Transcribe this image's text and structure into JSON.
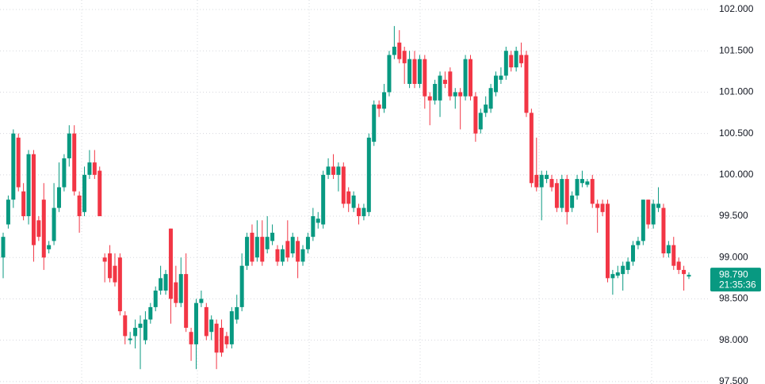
{
  "chart_data": {
    "type": "candlestick",
    "up_color": "#089981",
    "down_color": "#f23645",
    "grid": true,
    "ylim": [
      97.47,
      102.115
    ],
    "yticks": [
      {
        "value": 97.5,
        "label": "97.500"
      },
      {
        "value": 98,
        "label": "98.000"
      },
      {
        "value": 98.5,
        "label": "98.500"
      },
      {
        "value": 99,
        "label": "99.000"
      },
      {
        "value": 99.5,
        "label": "99.500"
      },
      {
        "value": 100,
        "label": "100.000"
      },
      {
        "value": 100.5,
        "label": "100.500"
      },
      {
        "value": 101,
        "label": "101.000"
      },
      {
        "value": 101.5,
        "label": "101.500"
      },
      {
        "value": 102,
        "label": "102.000"
      }
    ],
    "last_price": {
      "value": 98.79,
      "label": "98.790"
    },
    "countdown": "21:35:36",
    "open": [
      99.0,
      99.4,
      99.7,
      100.45,
      99.8,
      99.5,
      100.25,
      99.45,
      99.7,
      99.1,
      99.2,
      99.6,
      99.85,
      100.2,
      100.5,
      99.75,
      99.55,
      100.0,
      100.15,
      100.05,
      99.0,
      99.05,
      98.9,
      99.0,
      98.3,
      98.0,
      98.05,
      98.15,
      98.0,
      98.25,
      98.4,
      98.6,
      98.6,
      99.35,
      98.7,
      98.45,
      98.8,
      98.1,
      97.95,
      98.45,
      98.4,
      98.1,
      98.2,
      98.15,
      98.05,
      97.95,
      98.25,
      98.4,
      98.9,
      99.3,
      99.0,
      99.25,
      99.1,
      99.2,
      99.1,
      98.95,
      99.2,
      99.05,
      99.2,
      98.95,
      99.1,
      99.25,
      99.42,
      99.4,
      100.0,
      100.1,
      100.0,
      100.1,
      99.8,
      99.6,
      99.6,
      99.5,
      99.55,
      100.4,
      100.85,
      100.8,
      101.0,
      101.45,
      101.6,
      101.5,
      101.1,
      101.4,
      101.1,
      101.4,
      100.95,
      100.9,
      100.9,
      101.15,
      101.25,
      100.95,
      101.0,
      100.95,
      101.4,
      100.95,
      100.55,
      100.75,
      100.8,
      101.0,
      101.15,
      101.2,
      101.45,
      101.3,
      101.45,
      101.45,
      100.75,
      100.0,
      99.85,
      99.95,
      99.95,
      99.9,
      99.6,
      99.95,
      99.6,
      99.75,
      99.9,
      99.88,
      99.95,
      99.65,
      99.65,
      99.65,
      98.75,
      98.78,
      98.8,
      98.85,
      98.95,
      99.15,
      99.2,
      99.7,
      99.4,
      99.6,
      99.6,
      99.05,
      99.15,
      98.95,
      98.85,
      98.77
    ],
    "high": [
      99.3,
      99.75,
      100.55,
      100.5,
      99.9,
      100.3,
      100.3,
      99.5,
      99.9,
      99.2,
      99.9,
      100.15,
      100.25,
      100.6,
      100.6,
      99.8,
      100.1,
      100.3,
      100.3,
      100.1,
      99.05,
      99.15,
      99.05,
      99.05,
      98.35,
      98.1,
      98.25,
      98.3,
      98.35,
      98.45,
      98.65,
      98.9,
      98.85,
      99.35,
      98.9,
      99.0,
      99.05,
      98.15,
      98.5,
      98.6,
      98.45,
      98.3,
      98.25,
      98.25,
      98.1,
      98.4,
      98.55,
      99.05,
      99.3,
      99.4,
      99.45,
      99.45,
      99.5,
      99.4,
      99.15,
      99.15,
      99.45,
      99.3,
      99.25,
      99.15,
      99.3,
      99.6,
      99.55,
      100.05,
      100.2,
      100.25,
      100.15,
      100.15,
      99.85,
      99.8,
      99.65,
      99.65,
      100.5,
      100.9,
      100.9,
      101.1,
      101.5,
      101.8,
      101.75,
      101.55,
      101.5,
      101.5,
      101.45,
      101.45,
      101.0,
      101.15,
      101.25,
      101.25,
      101.3,
      101.05,
      101.05,
      101.45,
      101.45,
      101.0,
      100.8,
      100.95,
      101.1,
      101.25,
      101.3,
      101.55,
      101.5,
      101.55,
      101.6,
      101.5,
      100.8,
      100.45,
      100.05,
      100.05,
      100.0,
      99.95,
      100.0,
      100.0,
      99.8,
      100.0,
      100.05,
      99.95,
      100.0,
      99.7,
      99.7,
      99.7,
      98.85,
      98.9,
      98.95,
      99.0,
      99.2,
      99.25,
      99.7,
      99.7,
      99.7,
      99.85,
      99.65,
      99.2,
      99.25,
      99.0,
      98.9,
      98.82
    ],
    "low": [
      98.75,
      99.35,
      99.6,
      99.8,
      99.45,
      99.4,
      98.95,
      99.2,
      98.85,
      99.05,
      99.15,
      99.55,
      99.8,
      100.1,
      99.75,
      99.3,
      99.5,
      99.95,
      99.95,
      99.5,
      98.7,
      98.7,
      98.65,
      98.3,
      97.95,
      97.95,
      97.9,
      97.65,
      97.95,
      98.2,
      98.35,
      98.55,
      98.55,
      98.2,
      98.4,
      98.4,
      98.1,
      97.75,
      97.65,
      98.4,
      98.0,
      98.0,
      97.65,
      97.8,
      97.9,
      97.9,
      98.2,
      98.35,
      98.85,
      98.9,
      98.95,
      98.9,
      99.05,
      99.15,
      98.9,
      98.9,
      98.95,
      99.0,
      98.75,
      98.9,
      99.05,
      99.2,
      99.35,
      99.35,
      99.95,
      99.95,
      99.8,
      99.6,
      99.55,
      99.55,
      99.4,
      99.45,
      99.5,
      100.35,
      100.7,
      100.75,
      100.95,
      101.4,
      101.35,
      101.1,
      101.05,
      101.05,
      101.05,
      100.8,
      100.6,
      100.85,
      100.7,
      101.05,
      100.9,
      100.8,
      100.55,
      100.9,
      100.9,
      100.4,
      100.5,
      100.7,
      100.75,
      100.95,
      101.1,
      101.15,
      101.25,
      101.25,
      101.3,
      100.7,
      99.85,
      99.8,
      99.45,
      99.9,
      99.8,
      99.55,
      99.55,
      99.4,
      99.55,
      99.7,
      99.85,
      99.85,
      99.6,
      99.3,
      99.5,
      98.7,
      98.55,
      98.75,
      98.6,
      98.8,
      98.9,
      99.1,
      99.15,
      99.35,
      99.35,
      99.55,
      99.0,
      99.0,
      98.85,
      98.8,
      98.6,
      98.74
    ],
    "close": [
      99.25,
      99.7,
      100.5,
      99.85,
      99.5,
      100.25,
      99.15,
      99.25,
      99.0,
      99.15,
      99.6,
      99.85,
      100.2,
      100.5,
      99.8,
      99.5,
      100.0,
      100.15,
      100.0,
      99.5,
      98.95,
      98.75,
      98.7,
      98.35,
      98.05,
      98.02,
      98.15,
      98.2,
      98.25,
      98.4,
      98.6,
      98.75,
      98.8,
      98.5,
      98.45,
      98.8,
      98.15,
      97.95,
      98.45,
      98.5,
      98.05,
      98.25,
      97.85,
      97.85,
      97.95,
      98.35,
      98.4,
      98.9,
      99.25,
      98.95,
      99.25,
      98.95,
      99.25,
      99.3,
      98.95,
      99.1,
      99.0,
      99.25,
      98.95,
      99.1,
      99.25,
      99.5,
      99.47,
      100.0,
      100.1,
      100.0,
      100.1,
      99.65,
      99.65,
      99.75,
      99.5,
      99.6,
      100.45,
      100.85,
      100.8,
      101.0,
      101.45,
      101.55,
      101.4,
      101.35,
      101.4,
      101.1,
      101.4,
      100.95,
      100.9,
      101.1,
      101.2,
      101.1,
      100.95,
      101.0,
      100.95,
      101.4,
      100.95,
      100.5,
      100.75,
      100.85,
      101.05,
      101.2,
      101.2,
      101.5,
      101.3,
      101.5,
      101.35,
      100.75,
      99.9,
      99.85,
      100.0,
      100.0,
      99.85,
      99.6,
      99.95,
      99.55,
      99.75,
      99.95,
      99.95,
      99.92,
      99.65,
      99.6,
      99.55,
      98.75,
      98.8,
      98.82,
      98.9,
      98.95,
      99.15,
      99.2,
      99.7,
      99.4,
      99.65,
      99.65,
      99.05,
      99.15,
      98.9,
      98.85,
      98.8,
      98.79
    ]
  }
}
